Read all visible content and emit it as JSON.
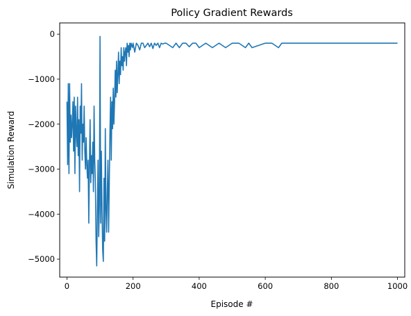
{
  "chart_data": {
    "type": "line",
    "title": "Policy Gradient Rewards",
    "xlabel": "Episode #",
    "ylabel": "Simulation Reward",
    "xlim": [
      -22,
      1022
    ],
    "ylim": [
      -5400,
      250
    ],
    "xticks": [
      0,
      200,
      400,
      600,
      800,
      1000
    ],
    "yticks": [
      0,
      -1000,
      -2000,
      -3000,
      -4000,
      -5000
    ],
    "xtick_labels": [
      "0",
      "200",
      "400",
      "600",
      "800",
      "1000"
    ],
    "ytick_labels": [
      "0",
      "−1000",
      "−2000",
      "−3000",
      "−4000",
      "−5000"
    ],
    "grid": false,
    "legend": "none",
    "series": [
      {
        "color": "#1f77b4",
        "x": [
          0,
          2,
          4,
          6,
          8,
          10,
          12,
          14,
          16,
          18,
          20,
          22,
          24,
          26,
          28,
          30,
          32,
          34,
          36,
          38,
          40,
          42,
          44,
          46,
          48,
          50,
          52,
          54,
          56,
          58,
          60,
          62,
          64,
          66,
          68,
          70,
          72,
          74,
          76,
          78,
          80,
          82,
          84,
          86,
          88,
          90,
          92,
          94,
          96,
          98,
          100,
          102,
          104,
          106,
          108,
          110,
          112,
          114,
          116,
          118,
          120,
          122,
          124,
          126,
          128,
          130,
          132,
          134,
          136,
          138,
          140,
          142,
          144,
          146,
          148,
          150,
          152,
          154,
          156,
          158,
          160,
          162,
          164,
          166,
          168,
          170,
          172,
          174,
          176,
          178,
          180,
          182,
          184,
          186,
          188,
          190,
          192,
          194,
          196,
          198,
          200,
          205,
          210,
          215,
          220,
          225,
          230,
          235,
          240,
          245,
          250,
          255,
          260,
          265,
          270,
          275,
          280,
          285,
          290,
          295,
          300,
          310,
          320,
          330,
          340,
          350,
          360,
          370,
          380,
          390,
          400,
          420,
          440,
          460,
          480,
          500,
          520,
          540,
          550,
          560,
          600,
          620,
          640,
          650,
          1000
        ],
        "y": [
          -1500,
          -2900,
          -1100,
          -3100,
          -1100,
          -2400,
          -1800,
          -2300,
          -2000,
          -1500,
          -2600,
          -1400,
          -3100,
          -1600,
          -2200,
          -2500,
          -1400,
          -2700,
          -1900,
          -3500,
          -1600,
          -2200,
          -1100,
          -2800,
          -2000,
          -2400,
          -1600,
          -2600,
          -3000,
          -2300,
          -2900,
          -3200,
          -2800,
          -4200,
          -2900,
          -1900,
          -3300,
          -2700,
          -3100,
          -2400,
          -3500,
          -1600,
          -2800,
          -3300,
          -4600,
          -5150,
          -3900,
          -2800,
          -4500,
          -3800,
          -50,
          -4200,
          -2600,
          -3900,
          -4800,
          -5050,
          -3200,
          -4600,
          -2100,
          -3900,
          -4400,
          -3500,
          -2800,
          -4400,
          -3300,
          -2200,
          -1400,
          -2800,
          -1500,
          -2100,
          -1200,
          -2000,
          -1500,
          -800,
          -1400,
          -600,
          -1300,
          -900,
          -400,
          -1100,
          -600,
          -900,
          -300,
          -700,
          -500,
          -800,
          -300,
          -600,
          -400,
          -300,
          -700,
          -200,
          -400,
          -250,
          -500,
          -200,
          -350,
          -200,
          -250,
          -300,
          -200,
          -400,
          -200,
          -250,
          -350,
          -200,
          -200,
          -300,
          -250,
          -200,
          -280,
          -200,
          -320,
          -200,
          -250,
          -200,
          -300,
          -200,
          -220,
          -200,
          -200,
          -250,
          -300,
          -200,
          -300,
          -200,
          -200,
          -280,
          -200,
          -200,
          -300,
          -200,
          -300,
          -200,
          -300,
          -200,
          -200,
          -300,
          -200,
          -300,
          -200,
          -200,
          -300,
          -200,
          -200
        ]
      }
    ]
  }
}
